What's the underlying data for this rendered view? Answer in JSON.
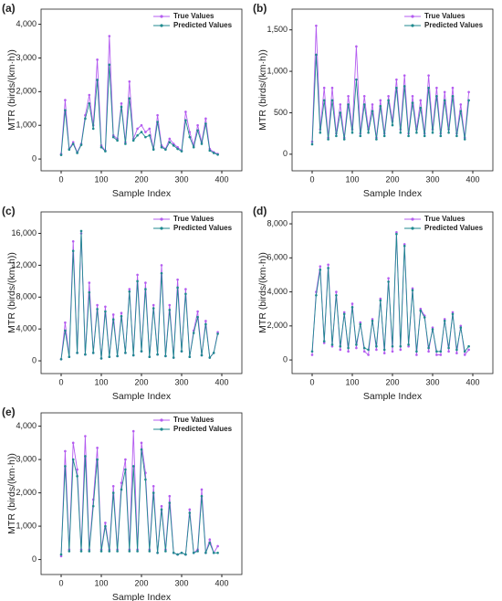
{
  "chart_data": [
    {
      "type": "line",
      "panel_label": "(a)",
      "xlabel": "Sample Index",
      "ylabel": "MTR (birds/(km·h))",
      "legend": "upper right",
      "x": [
        0,
        10,
        20,
        30,
        40,
        50,
        60,
        70,
        80,
        90,
        100,
        110,
        120,
        130,
        140,
        150,
        160,
        170,
        180,
        190,
        200,
        210,
        220,
        230,
        240,
        250,
        260,
        270,
        280,
        290,
        300,
        310,
        320,
        330,
        340,
        350,
        360,
        370,
        380,
        390
      ],
      "series": [
        {
          "name": "True Values",
          "color": "#b45cf0",
          "values": [
            150,
            1750,
            300,
            500,
            200,
            450,
            1300,
            1900,
            1000,
            2950,
            400,
            250,
            3650,
            700,
            600,
            1650,
            500,
            2300,
            600,
            900,
            1000,
            800,
            900,
            300,
            1300,
            400,
            300,
            600,
            450,
            350,
            250,
            1400,
            800,
            400,
            1000,
            500,
            1200,
            300,
            200,
            150
          ]
        },
        {
          "name": "Predicted Values",
          "color": "#1f8a8f",
          "values": [
            120,
            1450,
            280,
            450,
            180,
            420,
            1200,
            1650,
            900,
            2350,
            350,
            230,
            2800,
            650,
            550,
            1550,
            450,
            1800,
            550,
            700,
            800,
            650,
            700,
            280,
            1100,
            350,
            280,
            500,
            400,
            300,
            230,
            1150,
            650,
            350,
            850,
            450,
            1050,
            250,
            180,
            130
          ]
        }
      ],
      "xlim": [
        -50,
        450
      ],
      "ylim": [
        -350,
        4450
      ],
      "xticks": [
        0,
        100,
        200,
        300,
        400
      ],
      "yticks": [
        0,
        {
          "value": 1000,
          "label": "1,000"
        },
        {
          "value": 2000,
          "label": "2,000"
        },
        {
          "value": 3000,
          "label": "3,000"
        },
        {
          "value": 4000,
          "label": "4,000"
        }
      ]
    },
    {
      "type": "line",
      "panel_label": "(b)",
      "xlabel": "Sample Index",
      "ylabel": "MTR (birds/(km·h))",
      "legend": "upper right",
      "x": [
        0,
        10,
        20,
        30,
        40,
        50,
        60,
        70,
        80,
        90,
        100,
        110,
        120,
        130,
        140,
        150,
        160,
        170,
        180,
        190,
        200,
        210,
        220,
        230,
        240,
        250,
        260,
        270,
        280,
        290,
        300,
        310,
        320,
        330,
        340,
        350,
        360,
        370,
        380,
        390
      ],
      "series": [
        {
          "name": "True Values",
          "color": "#b45cf0",
          "values": [
            150,
            1550,
            300,
            800,
            200,
            800,
            250,
            600,
            200,
            700,
            300,
            1300,
            250,
            700,
            300,
            600,
            200,
            650,
            250,
            700,
            400,
            900,
            300,
            950,
            250,
            700,
            300,
            650,
            250,
            950,
            300,
            800,
            250,
            750,
            300,
            800,
            250,
            600,
            200,
            750
          ]
        },
        {
          "name": "Predicted Values",
          "color": "#1f8a8f",
          "values": [
            120,
            1200,
            260,
            650,
            180,
            650,
            220,
            500,
            180,
            600,
            260,
            900,
            220,
            600,
            260,
            520,
            180,
            580,
            220,
            650,
            350,
            800,
            260,
            820,
            220,
            620,
            260,
            560,
            220,
            800,
            260,
            700,
            220,
            650,
            260,
            700,
            220,
            520,
            180,
            650
          ]
        }
      ],
      "xlim": [
        -50,
        450
      ],
      "ylim": [
        -200,
        1750
      ],
      "xticks": [
        0,
        100,
        200,
        300,
        400
      ],
      "yticks": [
        0,
        500,
        {
          "value": 1000,
          "label": "1,000"
        },
        {
          "value": 1500,
          "label": "1,500"
        }
      ]
    },
    {
      "type": "line",
      "panel_label": "(c)",
      "xlabel": "Sample Index",
      "ylabel": "MTR (birds/(km·h))",
      "legend": "upper right",
      "x": [
        0,
        10,
        20,
        30,
        40,
        50,
        60,
        70,
        80,
        90,
        100,
        110,
        120,
        130,
        140,
        150,
        160,
        170,
        180,
        190,
        200,
        210,
        220,
        230,
        240,
        250,
        260,
        270,
        280,
        290,
        300,
        310,
        320,
        330,
        340,
        350,
        360,
        370,
        380,
        390
      ],
      "series": [
        {
          "name": "True Values",
          "color": "#b45cf0",
          "values": [
            200,
            4800,
            500,
            15000,
            1000,
            16000,
            800,
            9800,
            1000,
            7000,
            300,
            6800,
            500,
            5800,
            600,
            6000,
            1000,
            9000,
            700,
            10800,
            1200,
            9800,
            500,
            7000,
            800,
            12000,
            600,
            7000,
            400,
            10200,
            1200,
            9000,
            500,
            3800,
            6200,
            700,
            5000,
            400,
            1000,
            3600
          ]
        },
        {
          "name": "Predicted Values",
          "color": "#1f8a8f",
          "values": [
            200,
            3800,
            500,
            13800,
            1000,
            16300,
            800,
            8600,
            1000,
            6500,
            300,
            6200,
            500,
            5200,
            600,
            5600,
            1000,
            8700,
            700,
            10000,
            1200,
            9000,
            500,
            6600,
            800,
            11000,
            600,
            6400,
            400,
            9200,
            1200,
            8400,
            500,
            3500,
            5500,
            700,
            4600,
            400,
            1000,
            3400
          ]
        }
      ],
      "xlim": [
        -50,
        450
      ],
      "ylim": [
        -1600,
        18700
      ],
      "xticks": [
        0,
        100,
        200,
        300,
        400
      ],
      "yticks": [
        0,
        {
          "value": 4000,
          "label": "4,000"
        },
        {
          "value": 8000,
          "label": "8,000"
        },
        {
          "value": 12000,
          "label": "12,000"
        },
        {
          "value": 16000,
          "label": "16,000"
        }
      ]
    },
    {
      "type": "line",
      "panel_label": "(d)",
      "xlabel": "Sample Index",
      "ylabel": "MTR (birds/(km·h))",
      "legend": "upper right",
      "x": [
        0,
        10,
        20,
        30,
        40,
        50,
        60,
        70,
        80,
        90,
        100,
        110,
        120,
        130,
        140,
        150,
        160,
        170,
        180,
        190,
        200,
        210,
        220,
        230,
        240,
        250,
        260,
        270,
        280,
        290,
        300,
        310,
        320,
        330,
        340,
        350,
        360,
        370,
        380,
        390
      ],
      "series": [
        {
          "name": "True Values",
          "color": "#b45cf0",
          "values": [
            300,
            4000,
            5500,
            1000,
            5600,
            800,
            4000,
            600,
            2800,
            500,
            3300,
            700,
            2200,
            500,
            300,
            2400,
            600,
            3600,
            400,
            4800,
            500,
            7500,
            600,
            6800,
            800,
            4200,
            300,
            3000,
            2600,
            500,
            1900,
            300,
            300,
            2400,
            500,
            2800,
            400,
            2000,
            300,
            600
          ]
        },
        {
          "name": "Predicted Values",
          "color": "#1f8a8f",
          "values": [
            500,
            3800,
            5300,
            1100,
            5400,
            900,
            3800,
            800,
            2700,
            700,
            3100,
            900,
            2100,
            700,
            600,
            2300,
            800,
            3500,
            600,
            4600,
            800,
            7400,
            800,
            6700,
            900,
            4100,
            500,
            2900,
            2500,
            700,
            1800,
            500,
            500,
            2300,
            700,
            2700,
            600,
            1900,
            500,
            800
          ]
        }
      ],
      "xlim": [
        -50,
        450
      ],
      "ylim": [
        -800,
        8700
      ],
      "xticks": [
        0,
        100,
        200,
        300,
        400
      ],
      "yticks": [
        0,
        {
          "value": 2000,
          "label": "2,000"
        },
        {
          "value": 4000,
          "label": "4,000"
        },
        {
          "value": 6000,
          "label": "6,000"
        },
        {
          "value": 8000,
          "label": "8,000"
        }
      ]
    },
    {
      "type": "line",
      "panel_label": "(e)",
      "xlabel": "Sample Index",
      "ylabel": "MTR (birds/(km·h))",
      "legend": "upper right",
      "x": [
        0,
        10,
        20,
        30,
        40,
        50,
        60,
        70,
        80,
        90,
        100,
        110,
        120,
        130,
        140,
        150,
        160,
        170,
        180,
        190,
        200,
        210,
        220,
        230,
        240,
        250,
        260,
        270,
        280,
        290,
        300,
        310,
        320,
        330,
        340,
        350,
        360,
        370,
        380,
        390
      ],
      "series": [
        {
          "name": "True Values",
          "color": "#b45cf0",
          "values": [
            100,
            3250,
            300,
            3500,
            2700,
            300,
            3700,
            300,
            1800,
            3350,
            300,
            1100,
            300,
            2200,
            300,
            2300,
            3000,
            300,
            3850,
            300,
            3500,
            2600,
            300,
            2200,
            200,
            1600,
            300,
            1900,
            200,
            150,
            200,
            150,
            1500,
            200,
            300,
            2100,
            200,
            600,
            200,
            400
          ]
        },
        {
          "name": "Predicted Values",
          "color": "#1f8a8f",
          "values": [
            150,
            2800,
            250,
            3000,
            2500,
            250,
            3100,
            250,
            1600,
            3000,
            250,
            1000,
            250,
            2000,
            250,
            2100,
            2700,
            250,
            2800,
            250,
            3300,
            2400,
            250,
            2000,
            200,
            1500,
            250,
            1700,
            200,
            150,
            200,
            150,
            1400,
            200,
            250,
            1900,
            200,
            500,
            200,
            200
          ]
        }
      ],
      "xlim": [
        -50,
        450
      ],
      "ylim": [
        -450,
        4400
      ],
      "xticks": [
        0,
        100,
        200,
        300,
        400
      ],
      "yticks": [
        0,
        {
          "value": 1000,
          "label": "1,000"
        },
        {
          "value": 2000,
          "label": "2,000"
        },
        {
          "value": 3000,
          "label": "3,000"
        },
        {
          "value": 4000,
          "label": "4,000"
        }
      ]
    }
  ]
}
